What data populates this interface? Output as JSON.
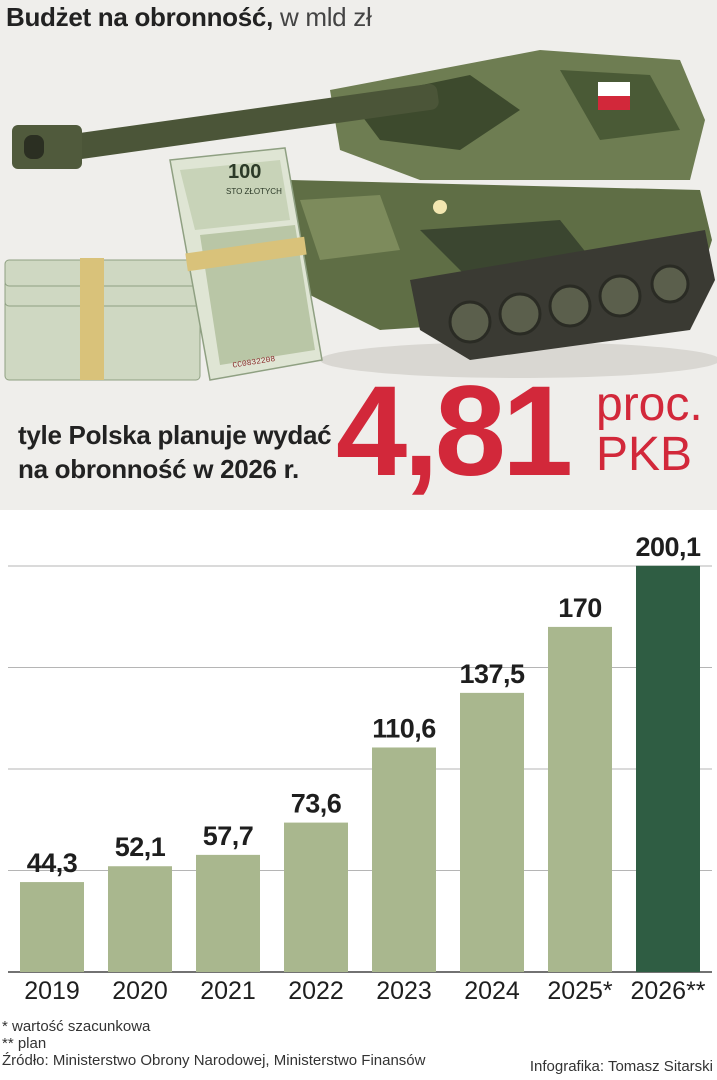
{
  "header": {
    "title_bold": "Budżet na obronność,",
    "title_unit": " w mld zł"
  },
  "highlight": {
    "caption_line1": "tyle Polska planuje wydać",
    "caption_line2": "na obronność w 2026 r.",
    "value": "4,81",
    "unit_line1": "proc.",
    "unit_line2": "PKB",
    "banknote_denomination": "100",
    "banknote_text": "STO ZŁOTYCH",
    "banknote_serial": "CC0832208"
  },
  "colors": {
    "accent_red": "#d2283a",
    "bar_default": "#a9b78e",
    "bar_highlight": "#2f5d43",
    "panel_bg": "#efeeeb"
  },
  "chart_data": {
    "type": "bar",
    "title": "Budżet na obronność, w mld zł",
    "categories": [
      "2019",
      "2020",
      "2021",
      "2022",
      "2023",
      "2024",
      "2025*",
      "2026**"
    ],
    "values": [
      44.3,
      52.1,
      57.7,
      73.6,
      110.6,
      137.5,
      170,
      200.1
    ],
    "value_labels": [
      "44,3",
      "52,1",
      "57,7",
      "73,6",
      "110,6",
      "137,5",
      "170",
      "200,1"
    ],
    "highlight_index": 7,
    "ylim": [
      0,
      200
    ],
    "gridlines": [
      0,
      50,
      100,
      150,
      200
    ],
    "grid": true,
    "xlabel": "",
    "ylabel": ""
  },
  "footnotes": {
    "note1": "* wartość szacunkowa",
    "note2": "** plan",
    "source": "Źródło: Ministerstwo Obrony Narodowej, Ministerstwo Finansów",
    "credit": "Infografika: Tomasz Sitarski"
  }
}
